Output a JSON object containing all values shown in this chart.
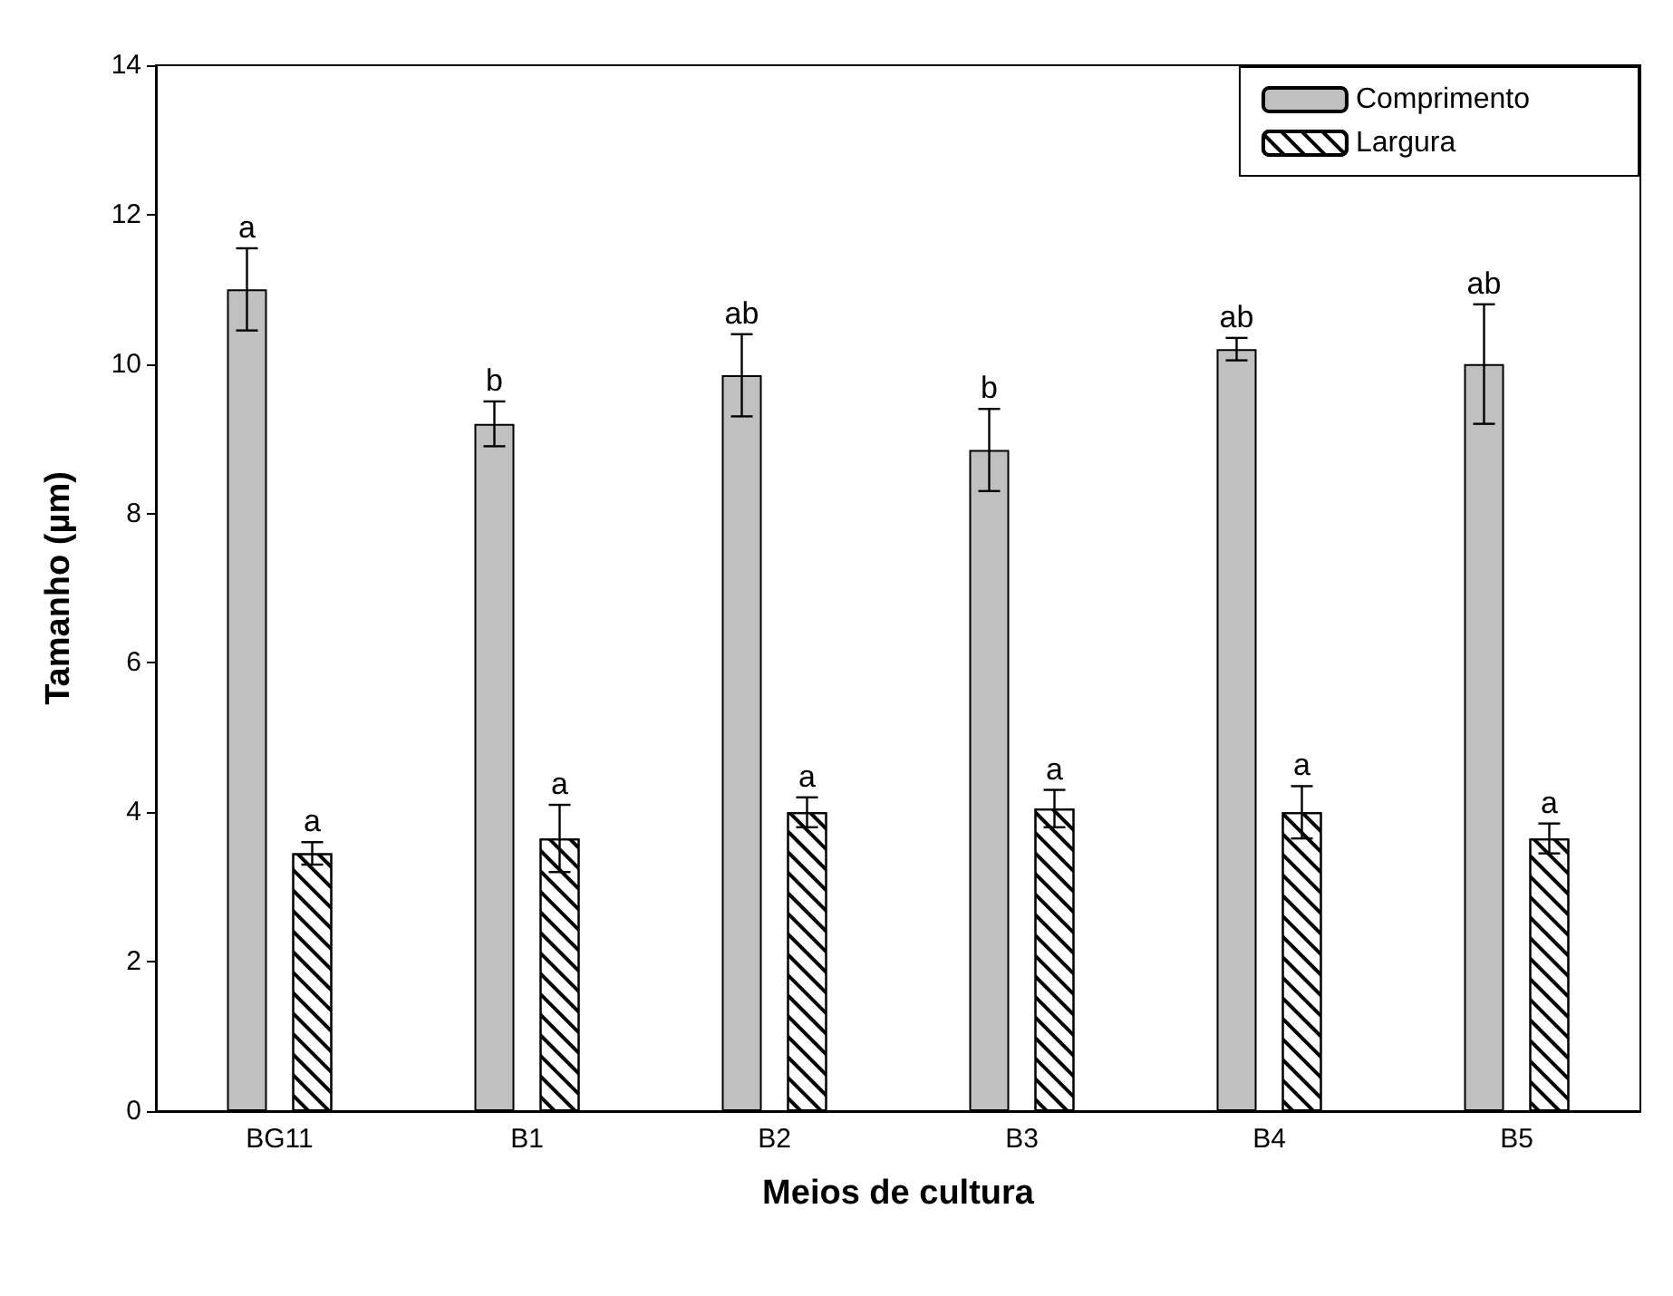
{
  "chart_data": {
    "type": "bar",
    "xlabel": "Meios de cultura",
    "ylabel": "Tamanho (µm)",
    "categories": [
      "BG11",
      "B1",
      "B2",
      "B3",
      "B4",
      "B5"
    ],
    "series": [
      {
        "name": "Comprimento",
        "color": "#c0c0c0",
        "values": [
          11.0,
          9.2,
          9.85,
          8.85,
          10.2,
          10.0
        ],
        "errors": [
          0.55,
          0.3,
          0.55,
          0.55,
          0.15,
          0.8
        ],
        "value_labels": [
          "a",
          "b",
          "ab",
          "b",
          "ab",
          "ab"
        ]
      },
      {
        "name": "Largura",
        "color": "#ffffff",
        "values": [
          3.45,
          3.65,
          4.0,
          4.05,
          4.0,
          3.65
        ],
        "errors": [
          0.15,
          0.45,
          0.2,
          0.25,
          0.35,
          0.2
        ],
        "value_labels": [
          "a",
          "a",
          "a",
          "a",
          "a",
          "a"
        ]
      }
    ],
    "ylim": [
      0,
      14
    ],
    "yticks": [
      0,
      2,
      4,
      6,
      8,
      10,
      12,
      14
    ],
    "grid": false,
    "legend": "top right"
  }
}
